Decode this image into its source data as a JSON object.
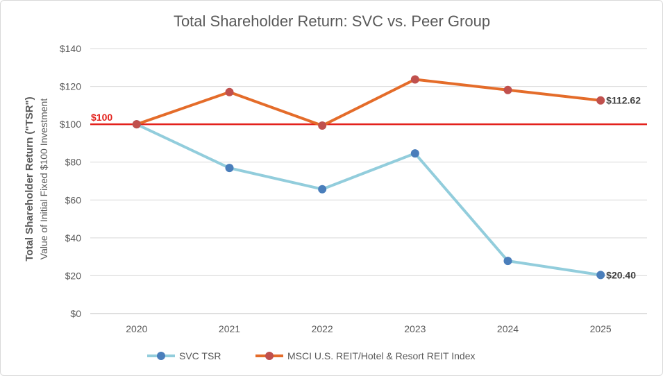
{
  "chart_data": {
    "type": "line",
    "title": "Total Shareholder Return: SVC vs. Peer Group",
    "ylabel": "Total Shareholder Return (\"TSR\")",
    "ylabel_sub": "Value of Initial Fixed $100 Investment",
    "x": [
      "2020",
      "2021",
      "2022",
      "2023",
      "2024",
      "2025"
    ],
    "ylim": [
      0,
      140
    ],
    "yticks": [
      "$0",
      "$20",
      "$40",
      "$60",
      "$80",
      "$100",
      "$120",
      "$140"
    ],
    "grid": true,
    "legend_position": "bottom",
    "reference_line": {
      "value": 100,
      "label": "$100",
      "color": "#e3211c"
    },
    "series": [
      {
        "name": "SVC TSR",
        "values": [
          100,
          76.9,
          65.7,
          84.6,
          27.8,
          20.4
        ],
        "line_color": "#92cddc",
        "marker_color": "#4a7ebb",
        "end_label": "$20.40"
      },
      {
        "name": "MSCI U.S. REIT/Hotel & Resort REIT Index",
        "values": [
          100,
          117,
          99.3,
          123.7,
          118.1,
          112.62
        ],
        "line_color": "#e46c2a",
        "marker_color": "#c0504d",
        "end_label": "$112.62"
      }
    ]
  }
}
